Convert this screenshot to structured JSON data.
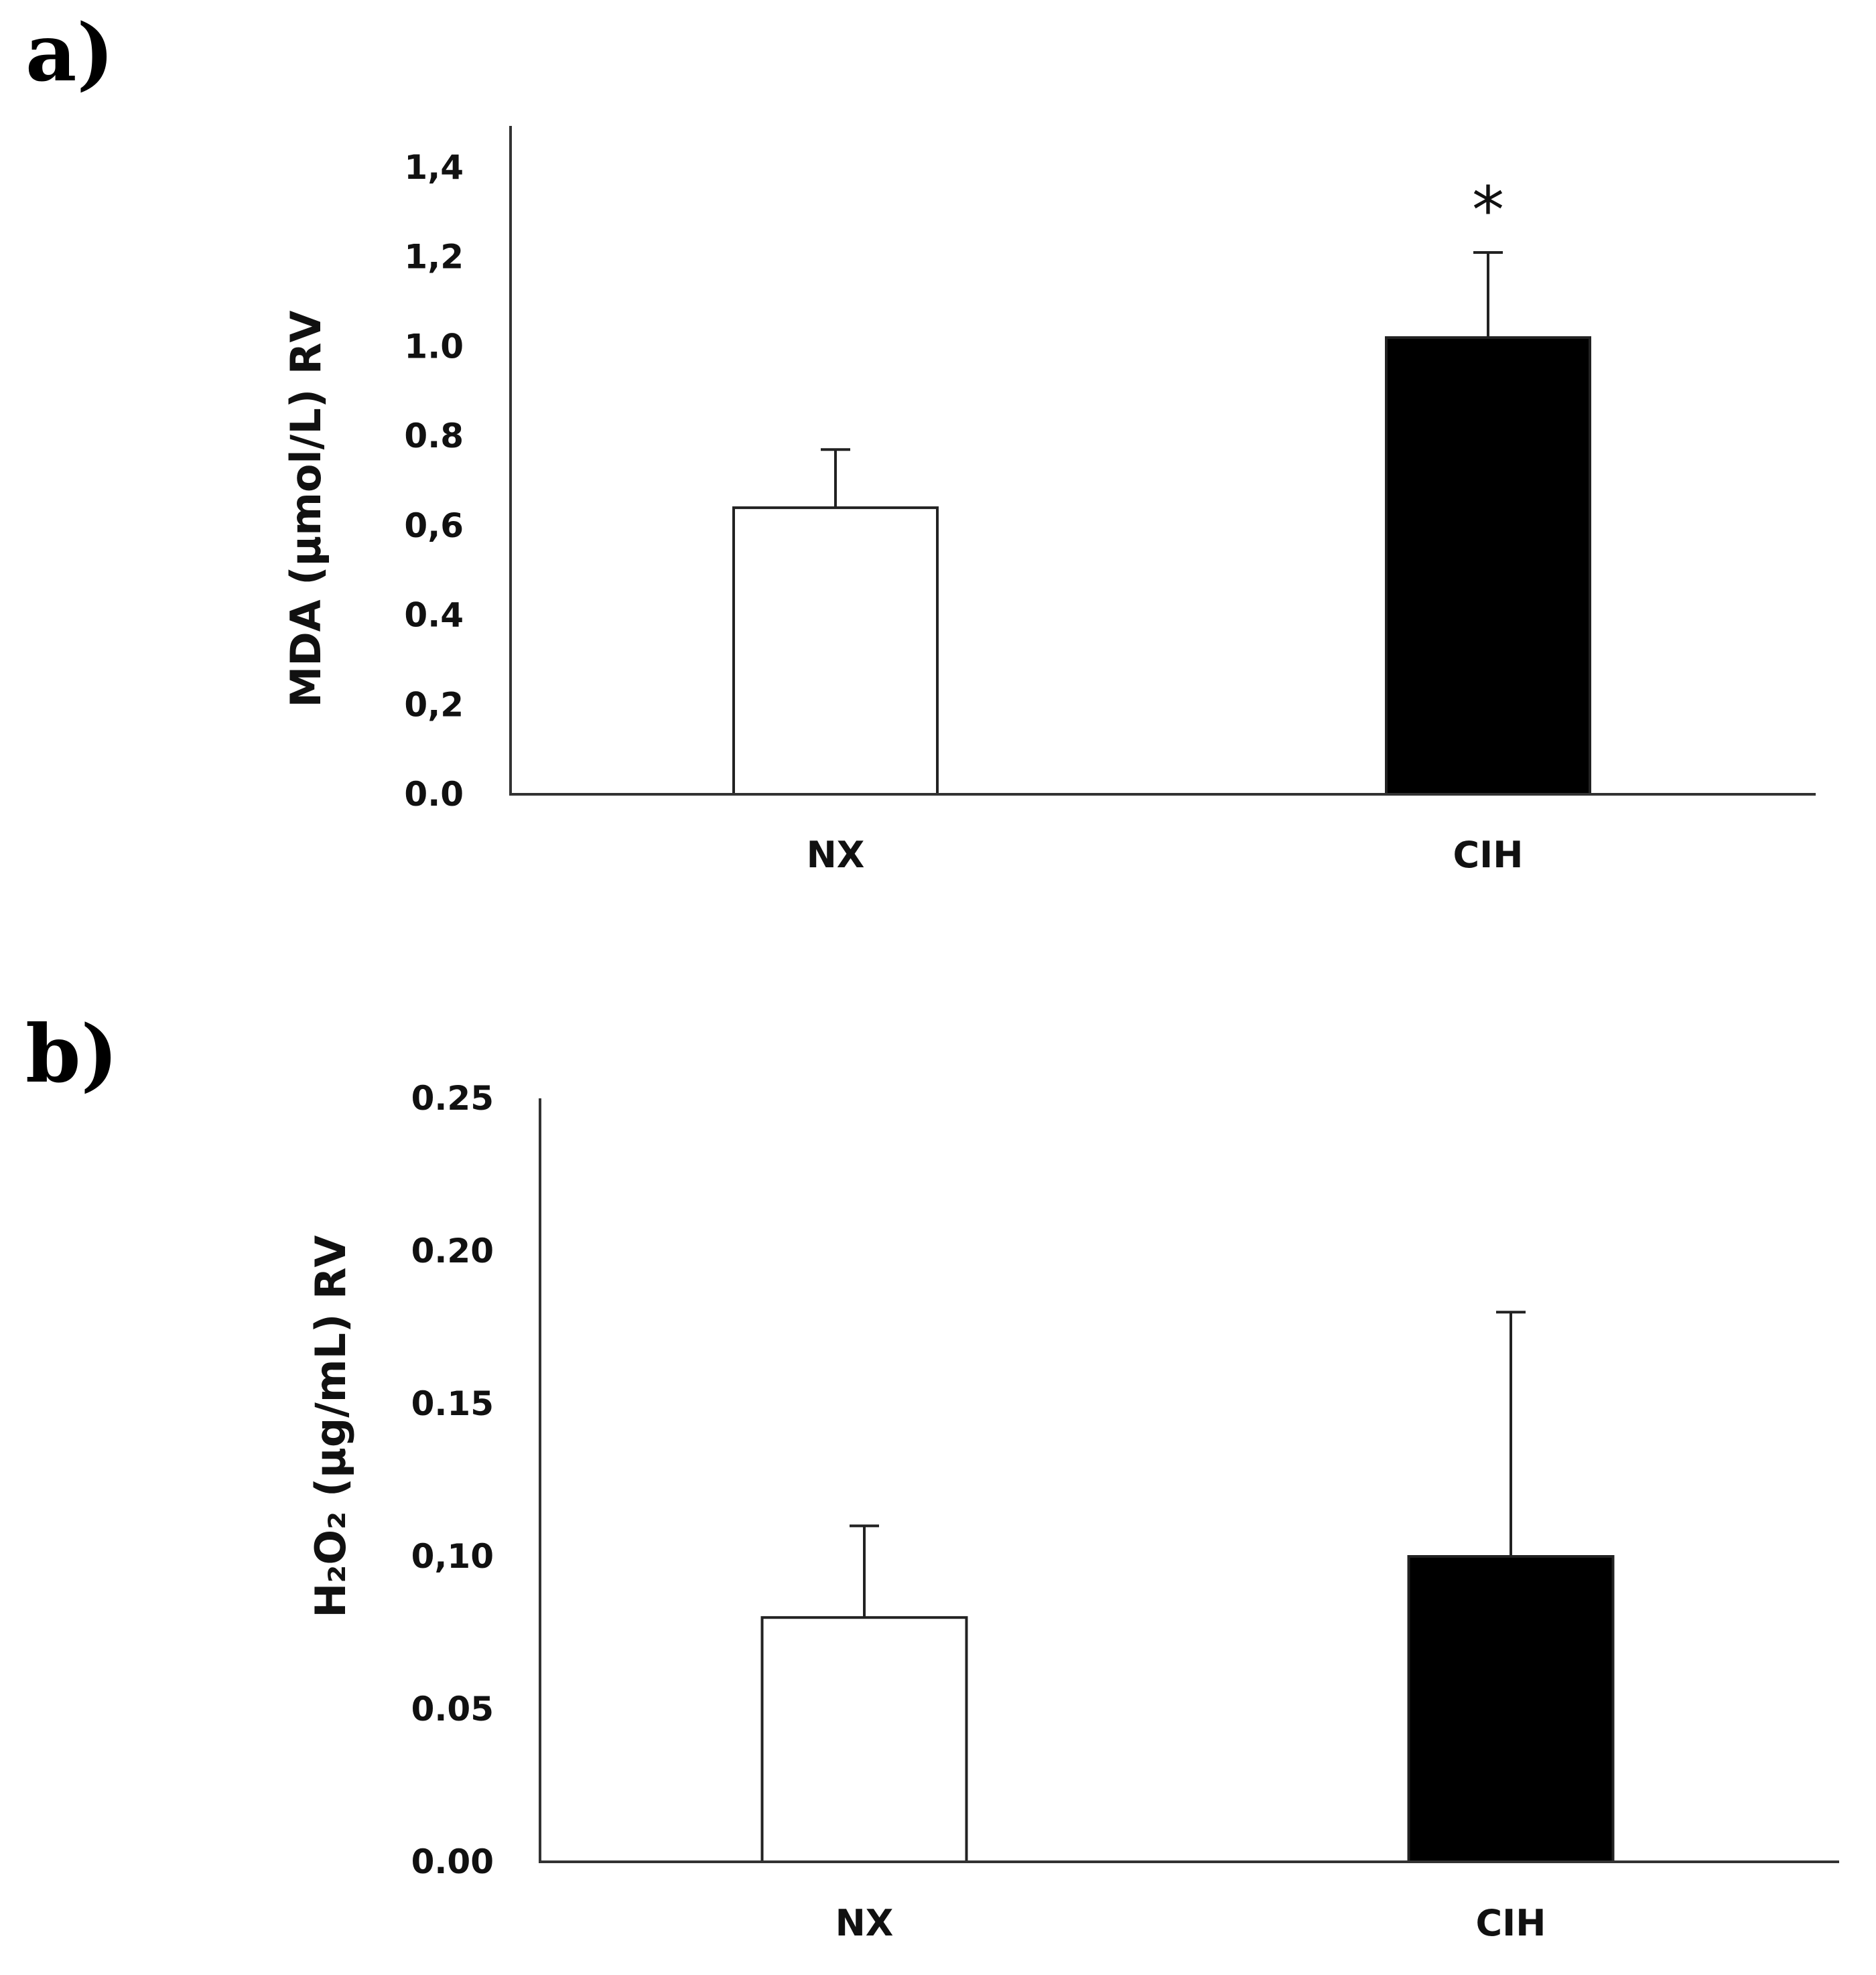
{
  "panels": [
    {
      "label": "a)",
      "ylabel": "MDA (µmol/L) RV",
      "tick_labels": [
        "0.0",
        "0,2",
        "0.4",
        "0,6",
        "0.8",
        "1.0",
        "1,2",
        "1,4"
      ],
      "significance": "*"
    },
    {
      "label": "b)",
      "ylabel": "H₂O₂ (µg/mL) RV",
      "tick_labels": [
        "0.00",
        "0.05",
        "0,10",
        "0.15",
        "0.20",
        "0.25"
      ]
    }
  ],
  "chart_data": [
    {
      "type": "bar",
      "title": "",
      "xlabel": "",
      "ylabel": "MDA (µmol/L) RV",
      "categories": [
        "NX",
        "CIH"
      ],
      "values": [
        0.64,
        1.02
      ],
      "error": [
        0.13,
        0.19
      ],
      "ylim": [
        0,
        1.4
      ],
      "ticks": [
        0,
        0.2,
        0.4,
        0.6,
        0.8,
        1.0,
        1.2,
        1.4
      ],
      "bar_colors": [
        "#ffffff",
        "#000000"
      ],
      "grid": false,
      "annotations": [
        {
          "category": "CIH",
          "text": "*"
        }
      ]
    },
    {
      "type": "bar",
      "title": "",
      "xlabel": "",
      "ylabel": "H₂O₂ (µg/mL) RV",
      "categories": [
        "NX",
        "CIH"
      ],
      "values": [
        0.08,
        0.1
      ],
      "error": [
        0.03,
        0.08
      ],
      "ylim": [
        0,
        0.25
      ],
      "ticks": [
        0,
        0.05,
        0.1,
        0.15,
        0.2,
        0.25
      ],
      "bar_colors": [
        "#ffffff",
        "#000000"
      ],
      "grid": false
    }
  ]
}
